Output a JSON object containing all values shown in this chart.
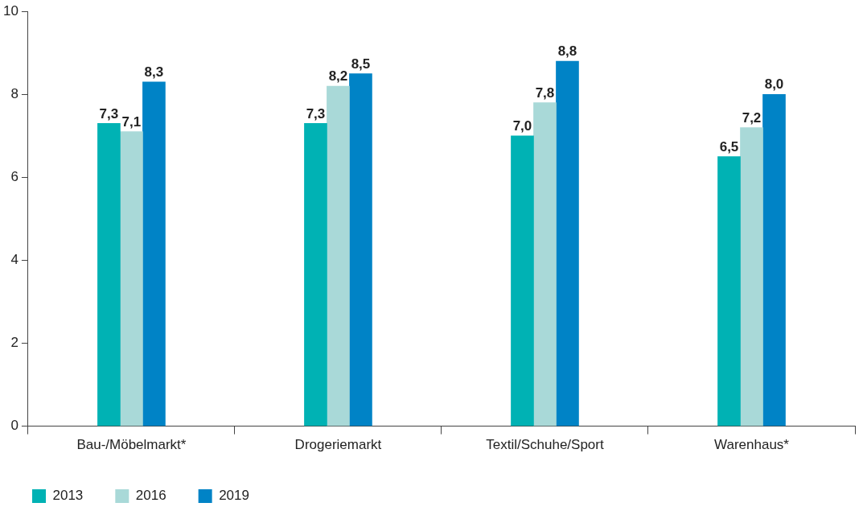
{
  "chart_data": {
    "type": "bar",
    "categories": [
      "Bau-/Möbelmarkt*",
      "Drogeriemarkt",
      "Textil/Schuhe/Sport",
      "Warenhaus*"
    ],
    "series": [
      {
        "name": "2013",
        "color": "#00b2b4",
        "values": [
          7.3,
          7.3,
          7.0,
          6.5
        ],
        "value_labels": [
          "7,3",
          "7,3",
          "7,0",
          "6,5"
        ]
      },
      {
        "name": "2016",
        "color": "#a9d9d8",
        "values": [
          7.1,
          8.2,
          7.8,
          7.2
        ],
        "value_labels": [
          "7,1",
          "8,2",
          "7,8",
          "7,2"
        ]
      },
      {
        "name": "2019",
        "color": "#0083c6",
        "values": [
          8.3,
          8.5,
          8.8,
          8.0
        ],
        "value_labels": [
          "8,3",
          "8,5",
          "8,8",
          "8,0"
        ]
      }
    ],
    "ylim": [
      0,
      10
    ],
    "yticks": [
      0,
      2,
      4,
      6,
      8,
      10
    ],
    "grid": false,
    "legend": "bottom left"
  }
}
